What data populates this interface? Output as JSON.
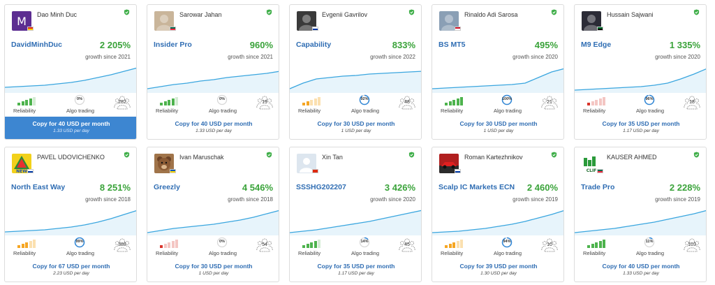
{
  "labels": {
    "reliability": "Reliability",
    "algo_trading": "Algo trading"
  },
  "colors": {
    "growth": "#3aa33a",
    "link": "#2f6db3",
    "chart": "#3aa6df",
    "active_button": "#3d86d1",
    "verified": "#3fae49"
  },
  "cards": [
    {
      "name": "Dao Minh Duc",
      "signal": "DavidMinhDuc",
      "growth": "2 205%",
      "since": "growth since 2021",
      "reliability": {
        "level": 4,
        "color": "#4db34d"
      },
      "algo": "0%",
      "algo_fraction": 0,
      "subscribers": "282",
      "copy": "Copy for 40 USD per month",
      "per_day": "1.33 USD per day",
      "active": true,
      "avatar": {
        "icon": "letter-m-avatar",
        "bg": "#5c2d91",
        "letter": "M"
      },
      "flag": [
        "#da251d",
        "#ffcd00"
      ],
      "spark": [
        8,
        9,
        10,
        11,
        13,
        15,
        18,
        22,
        26,
        31,
        36
      ]
    },
    {
      "name": "Sarowar Jahan",
      "signal": "Insider Pro",
      "growth": "960%",
      "since": "growth since 2021",
      "reliability": {
        "level": 4,
        "color": "#4db34d"
      },
      "algo": "0%",
      "algo_fraction": 0,
      "subscribers": "19",
      "copy": "Copy for 40 USD per month",
      "per_day": "1.33 USD per day",
      "active": false,
      "avatar": {
        "icon": "person-photo-avatar",
        "bg": "#c9b59a"
      },
      "flag": [
        "#006a4e",
        "#f42a41"
      ],
      "spark": [
        6,
        9,
        12,
        14,
        17,
        19,
        22,
        24,
        26,
        28,
        31
      ]
    },
    {
      "name": "Evgenii Gavrilov",
      "signal": "Capability",
      "growth": "833%",
      "since": "growth since 2022",
      "reliability": {
        "level": 2,
        "color": "#f5a623"
      },
      "algo": "92%",
      "algo_fraction": 0.92,
      "subscribers": "48",
      "copy": "Copy for 30 USD per month",
      "per_day": "1 USD per day",
      "active": false,
      "avatar": {
        "icon": "person-photo-avatar",
        "bg": "#3a3a3a"
      },
      "flag": [
        "#ffffff",
        "#0039a6"
      ],
      "spark": [
        6,
        14,
        20,
        22,
        24,
        25,
        27,
        28,
        29,
        30,
        31
      ]
    },
    {
      "name": "Rinaldo Adi Sarosa",
      "signal": "BS MT5",
      "growth": "495%",
      "since": "growth since 2020",
      "reliability": {
        "level": 5,
        "color": "#4db34d"
      },
      "algo": "100%",
      "algo_fraction": 1,
      "subscribers": "21",
      "copy": "Copy for 30 USD per month",
      "per_day": "1 USD per day",
      "active": false,
      "avatar": {
        "icon": "person-photo-avatar",
        "bg": "#8a9fb5"
      },
      "flag": [
        "#ce1126",
        "#ffffff"
      ],
      "spark": [
        6,
        7,
        8,
        9,
        10,
        11,
        12,
        14,
        22,
        30,
        35
      ]
    },
    {
      "name": "Hussain Sajwani",
      "signal": "M9 Edge",
      "growth": "1 335%",
      "since": "growth since 2020",
      "reliability": {
        "level": 1,
        "color": "#d9342b"
      },
      "algo": "96%",
      "algo_fraction": 0.96,
      "subscribers": "18",
      "copy": "Copy for 35 USD per month",
      "per_day": "1.17 USD per day",
      "active": false,
      "avatar": {
        "icon": "person-photo-avatar",
        "bg": "#2b2b36"
      },
      "flag": [
        "#00732f",
        "#000000"
      ],
      "spark": [
        4,
        5,
        6,
        7,
        8,
        9,
        11,
        14,
        20,
        27,
        35
      ]
    },
    {
      "name": "PAVEL UDOVICHENKO",
      "signal": "North East Way",
      "growth": "8 251%",
      "since": "growth since 2018",
      "reliability": {
        "level": 3,
        "color": "#f5a623"
      },
      "algo": "99%",
      "algo_fraction": 0.99,
      "subscribers": "388",
      "copy": "Copy for 67 USD per month",
      "per_day": "2.23 USD per day",
      "active": false,
      "avatar": {
        "icon": "new-logo-avatar",
        "bg": "#f2d11b"
      },
      "flag": [
        "#ffffff",
        "#0039a6"
      ],
      "spark": [
        5,
        6,
        7,
        8,
        10,
        12,
        15,
        19,
        24,
        30,
        36
      ]
    },
    {
      "name": "Ivan Maruschak",
      "signal": "Greezly",
      "growth": "4 546%",
      "since": "growth since 2018",
      "reliability": {
        "level": 1,
        "color": "#d9342b"
      },
      "algo": "0%",
      "algo_fraction": 0,
      "subscribers": "54",
      "copy": "Copy for 30 USD per month",
      "per_day": "1 USD per day",
      "active": false,
      "avatar": {
        "icon": "teddy-bear-avatar",
        "bg": "#a0744a"
      },
      "flag": [
        "#0057b7",
        "#ffd700"
      ],
      "spark": [
        4,
        7,
        10,
        12,
        14,
        16,
        19,
        22,
        26,
        31,
        36
      ]
    },
    {
      "name": "Xin Tan",
      "signal": "SSSHG202207",
      "growth": "3 426%",
      "since": "growth since 2020",
      "reliability": {
        "level": 4,
        "color": "#4db34d"
      },
      "algo": "14%",
      "algo_fraction": 0.14,
      "subscribers": "45",
      "copy": "Copy for 35 USD per month",
      "per_day": "1.17 USD per day",
      "active": false,
      "avatar": {
        "icon": "default-user-avatar",
        "bg": "#dde6ef"
      },
      "flag": [
        "#de2910",
        "#de2910"
      ],
      "spark": [
        4,
        6,
        8,
        11,
        14,
        17,
        20,
        24,
        28,
        32,
        36
      ]
    },
    {
      "name": "Roman Kartezhnikov",
      "signal": "Scalp IC Markets ECN",
      "growth": "2 460%",
      "since": "growth since 2019",
      "reliability": {
        "level": 3,
        "color": "#f5a623"
      },
      "algo": "94%",
      "algo_fraction": 0.94,
      "subscribers": "10",
      "copy": "Copy for 39 USD per month",
      "per_day": "1.30 USD per day",
      "active": false,
      "avatar": {
        "icon": "race-car-avatar",
        "bg": "#b11f1f"
      },
      "flag": [
        "#ffffff",
        "#0039a6"
      ],
      "spark": [
        4,
        5,
        6,
        8,
        10,
        13,
        16,
        20,
        25,
        30,
        36
      ]
    },
    {
      "name": "KAUSER AHMED",
      "signal": "Trade Pro",
      "growth": "2 228%",
      "since": "growth since 2019",
      "reliability": {
        "level": 5,
        "color": "#4db34d"
      },
      "algo": "11%",
      "algo_fraction": 0.11,
      "subscribers": "103",
      "copy": "Copy for 40 USD per month",
      "per_day": "1.33 USD per day",
      "active": false,
      "avatar": {
        "icon": "clif-logo-avatar",
        "bg": "#ffffff"
      },
      "flag": [
        "#006a4e",
        "#f42a41"
      ],
      "spark": [
        4,
        6,
        8,
        10,
        13,
        16,
        19,
        23,
        27,
        31,
        36
      ]
    }
  ]
}
